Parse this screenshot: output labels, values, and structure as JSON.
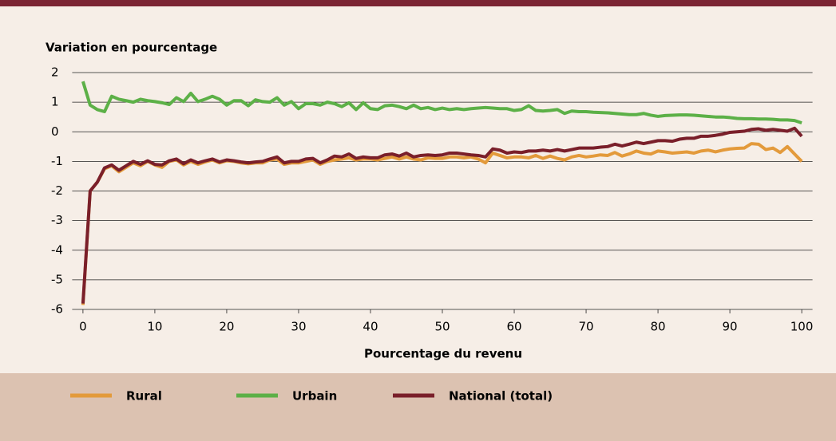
{
  "chart_data": {
    "type": "line",
    "y_axis_label": "Variation en pourcentage",
    "x_axis_label": "Pourcentage du revenu",
    "x": [
      0,
      1,
      2,
      3,
      4,
      5,
      6,
      7,
      8,
      9,
      10,
      11,
      12,
      13,
      14,
      15,
      16,
      17,
      18,
      19,
      20,
      21,
      22,
      23,
      24,
      25,
      26,
      27,
      28,
      29,
      30,
      31,
      32,
      33,
      34,
      35,
      36,
      37,
      38,
      39,
      40,
      41,
      42,
      43,
      44,
      45,
      46,
      47,
      48,
      49,
      50,
      51,
      52,
      53,
      54,
      55,
      56,
      57,
      58,
      59,
      60,
      61,
      62,
      63,
      64,
      65,
      66,
      67,
      68,
      69,
      70,
      71,
      72,
      73,
      74,
      75,
      76,
      77,
      78,
      79,
      80,
      81,
      82,
      83,
      84,
      85,
      86,
      87,
      88,
      89,
      90,
      91,
      92,
      93,
      94,
      95,
      96,
      97,
      98,
      99,
      100
    ],
    "series": [
      {
        "name": "Rural",
        "color": "#e39a3b",
        "values": [
          -5.85,
          -2.0,
          -1.7,
          -1.25,
          -1.15,
          -1.35,
          -1.2,
          -1.05,
          -1.15,
          -1.0,
          -1.12,
          -1.2,
          -1.0,
          -0.95,
          -1.12,
          -1.0,
          -1.1,
          -1.02,
          -0.95,
          -1.05,
          -0.98,
          -1.0,
          -1.05,
          -1.08,
          -1.05,
          -1.05,
          -0.95,
          -0.92,
          -1.1,
          -1.05,
          -1.05,
          -1.0,
          -0.95,
          -1.1,
          -1.0,
          -0.95,
          -0.92,
          -0.88,
          -0.95,
          -0.92,
          -0.92,
          -0.95,
          -0.9,
          -0.85,
          -0.92,
          -0.85,
          -0.92,
          -0.95,
          -0.88,
          -0.9,
          -0.9,
          -0.85,
          -0.85,
          -0.88,
          -0.85,
          -0.92,
          -1.05,
          -0.72,
          -0.8,
          -0.88,
          -0.85,
          -0.85,
          -0.88,
          -0.8,
          -0.9,
          -0.82,
          -0.9,
          -0.95,
          -0.85,
          -0.8,
          -0.85,
          -0.82,
          -0.78,
          -0.8,
          -0.7,
          -0.82,
          -0.75,
          -0.65,
          -0.72,
          -0.75,
          -0.65,
          -0.68,
          -0.72,
          -0.7,
          -0.68,
          -0.72,
          -0.65,
          -0.62,
          -0.68,
          -0.62,
          -0.58,
          -0.56,
          -0.55,
          -0.4,
          -0.42,
          -0.6,
          -0.55,
          -0.7,
          -0.5,
          -0.75,
          -1.0
        ]
      },
      {
        "name": "Urbain",
        "color": "#5cb047",
        "values": [
          1.7,
          0.9,
          0.75,
          0.68,
          1.2,
          1.1,
          1.05,
          1.0,
          1.1,
          1.05,
          1.02,
          0.98,
          0.92,
          1.15,
          1.02,
          1.3,
          1.02,
          1.1,
          1.2,
          1.1,
          0.9,
          1.05,
          1.05,
          0.88,
          1.08,
          1.02,
          1.0,
          1.15,
          0.9,
          1.02,
          0.78,
          0.95,
          0.95,
          0.9,
          1.0,
          0.95,
          0.85,
          0.98,
          0.75,
          0.98,
          0.78,
          0.75,
          0.88,
          0.9,
          0.85,
          0.78,
          0.9,
          0.78,
          0.82,
          0.75,
          0.8,
          0.75,
          0.78,
          0.75,
          0.78,
          0.8,
          0.82,
          0.8,
          0.78,
          0.78,
          0.72,
          0.75,
          0.88,
          0.72,
          0.7,
          0.72,
          0.75,
          0.62,
          0.7,
          0.68,
          0.68,
          0.66,
          0.65,
          0.64,
          0.62,
          0.6,
          0.58,
          0.58,
          0.62,
          0.56,
          0.52,
          0.55,
          0.56,
          0.57,
          0.57,
          0.56,
          0.54,
          0.52,
          0.5,
          0.5,
          0.48,
          0.45,
          0.44,
          0.44,
          0.43,
          0.43,
          0.42,
          0.4,
          0.4,
          0.38,
          0.3
        ]
      },
      {
        "name": "National (total)",
        "color": "#7a1f2a",
        "values": [
          -5.8,
          -2.0,
          -1.7,
          -1.22,
          -1.12,
          -1.3,
          -1.15,
          -1.0,
          -1.1,
          -0.98,
          -1.1,
          -1.12,
          -0.98,
          -0.92,
          -1.08,
          -0.95,
          -1.05,
          -0.98,
          -0.92,
          -1.02,
          -0.95,
          -0.98,
          -1.02,
          -1.05,
          -1.02,
          -1.0,
          -0.92,
          -0.85,
          -1.05,
          -1.0,
          -1.0,
          -0.92,
          -0.9,
          -1.05,
          -0.95,
          -0.82,
          -0.85,
          -0.75,
          -0.9,
          -0.85,
          -0.88,
          -0.88,
          -0.78,
          -0.75,
          -0.82,
          -0.72,
          -0.85,
          -0.8,
          -0.78,
          -0.8,
          -0.78,
          -0.72,
          -0.72,
          -0.75,
          -0.78,
          -0.8,
          -0.85,
          -0.58,
          -0.62,
          -0.72,
          -0.68,
          -0.7,
          -0.65,
          -0.65,
          -0.62,
          -0.65,
          -0.6,
          -0.65,
          -0.6,
          -0.55,
          -0.55,
          -0.55,
          -0.52,
          -0.5,
          -0.42,
          -0.48,
          -0.42,
          -0.35,
          -0.4,
          -0.35,
          -0.3,
          -0.3,
          -0.32,
          -0.25,
          -0.22,
          -0.22,
          -0.15,
          -0.15,
          -0.12,
          -0.08,
          -0.02,
          0,
          0.02,
          0.08,
          0.1,
          0.05,
          0.08,
          0.05,
          0.02,
          0.12,
          -0.15
        ]
      }
    ],
    "xlim": [
      -1.5,
      101.5
    ],
    "xticks": [
      0,
      10,
      20,
      30,
      40,
      50,
      60,
      70,
      80,
      90,
      100
    ],
    "ylim": [
      -6,
      2
    ],
    "yticks": [
      -6,
      -5,
      -4,
      -3,
      -2,
      -1,
      0,
      1,
      2
    ],
    "grid": true
  }
}
